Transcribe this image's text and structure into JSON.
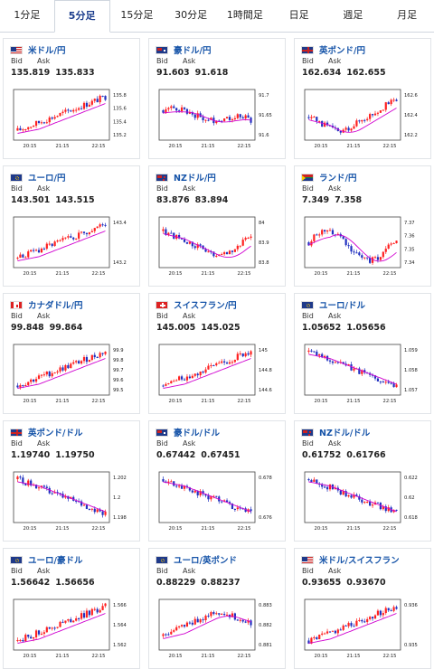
{
  "tabs": [
    {
      "label": "1分足",
      "active": false
    },
    {
      "label": "5分足",
      "active": true
    },
    {
      "label": "15分足",
      "active": false
    },
    {
      "label": "30分足",
      "active": false
    },
    {
      "label": "1時間足",
      "active": false
    },
    {
      "label": "日足",
      "active": false
    },
    {
      "label": "週足",
      "active": false
    },
    {
      "label": "月足",
      "active": false
    }
  ],
  "labels": {
    "bid": "Bid",
    "ask": "Ask"
  },
  "xticks": [
    "20:15",
    "21:15",
    "22:15"
  ],
  "colors": {
    "up": "#ff2020",
    "down": "#2030c0",
    "ma": "#d000d0"
  },
  "cards": [
    {
      "pair": "米ドル/円",
      "flag": "us",
      "bid": "135.819",
      "ask": "135.833",
      "yticks": [
        "135.8",
        "135.6",
        "135.4",
        "135.2"
      ],
      "trend": "up"
    },
    {
      "pair": "豪ドル/円",
      "flag": "au",
      "bid": "91.603",
      "ask": "91.618",
      "yticks": [
        "91.7",
        "91.65",
        "91.6"
      ],
      "trend": "flat-down"
    },
    {
      "pair": "英ポンド/円",
      "flag": "gb",
      "bid": "162.634",
      "ask": "162.655",
      "yticks": [
        "162.6",
        "162.4",
        "162.2"
      ],
      "trend": "dip-up"
    },
    {
      "pair": "ユーロ/円",
      "flag": "eu",
      "bid": "143.501",
      "ask": "143.515",
      "yticks": [
        "143.4",
        "143.2"
      ],
      "trend": "up"
    },
    {
      "pair": "NZドル/円",
      "flag": "nz",
      "bid": "83.876",
      "ask": "83.894",
      "yticks": [
        "84",
        "83.9",
        "83.8"
      ],
      "trend": "down-recover"
    },
    {
      "pair": "ランド/円",
      "flag": "za",
      "bid": "7.349",
      "ask": "7.358",
      "yticks": [
        "7.37",
        "7.36",
        "7.35",
        "7.34"
      ],
      "trend": "wave"
    },
    {
      "pair": "カナダドル/円",
      "flag": "ca",
      "bid": "99.848",
      "ask": "99.864",
      "yticks": [
        "99.9",
        "99.8",
        "99.7",
        "99.6",
        "99.5"
      ],
      "trend": "up"
    },
    {
      "pair": "スイスフラン/円",
      "flag": "ch",
      "bid": "145.005",
      "ask": "145.025",
      "yticks": [
        "145",
        "144.8",
        "144.6"
      ],
      "trend": "up"
    },
    {
      "pair": "ユーロ/ドル",
      "flag": "eu",
      "bid": "1.05652",
      "ask": "1.05656",
      "yticks": [
        "1.059",
        "1.058",
        "1.057"
      ],
      "trend": "down"
    },
    {
      "pair": "英ポンド/ドル",
      "flag": "gb",
      "bid": "1.19740",
      "ask": "1.19750",
      "yticks": [
        "1.202",
        "1.2",
        "1.198"
      ],
      "trend": "down"
    },
    {
      "pair": "豪ドル/ドル",
      "flag": "au",
      "bid": "0.67442",
      "ask": "0.67451",
      "yticks": [
        "0.678",
        "0.676"
      ],
      "trend": "down"
    },
    {
      "pair": "NZドル/ドル",
      "flag": "nz",
      "bid": "0.61752",
      "ask": "0.61766",
      "yticks": [
        "0.622",
        "0.62",
        "0.618"
      ],
      "trend": "down"
    },
    {
      "pair": "ユーロ/豪ドル",
      "flag": "eu",
      "bid": "1.56642",
      "ask": "1.56656",
      "yticks": [
        "1.566",
        "1.564",
        "1.562"
      ],
      "trend": "up"
    },
    {
      "pair": "ユーロ/英ポンド",
      "flag": "eu",
      "bid": "0.88229",
      "ask": "0.88237",
      "yticks": [
        "0.883",
        "0.882",
        "0.881"
      ],
      "trend": "hump"
    },
    {
      "pair": "米ドル/スイスフラン",
      "flag": "us",
      "bid": "0.93655",
      "ask": "0.93670",
      "yticks": [
        "0.936",
        "0.935"
      ],
      "trend": "up"
    }
  ]
}
